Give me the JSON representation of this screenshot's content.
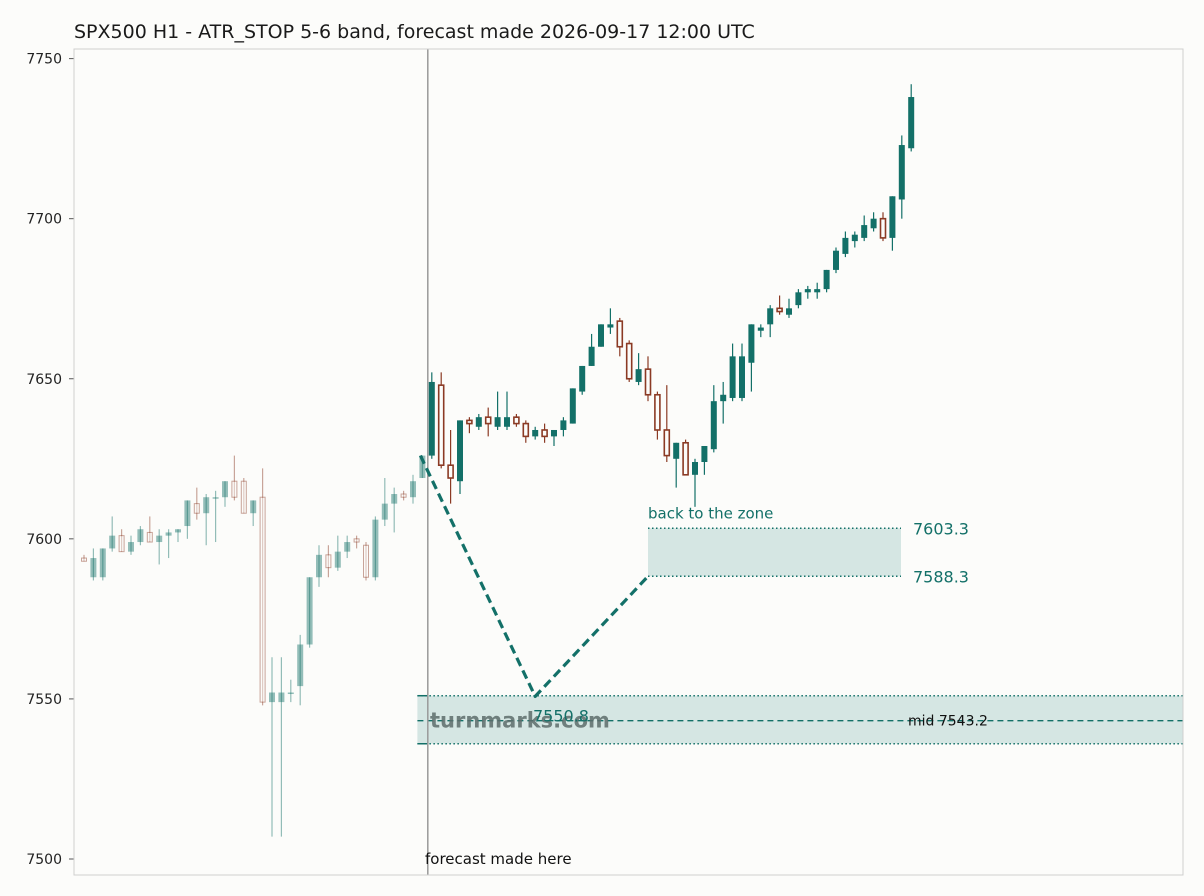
{
  "chart_data": {
    "type": "candlestick",
    "title": "SPX500 H1 - ATR_STOP 5-6 band, forecast made 2026-09-17 12:00 UTC",
    "xlabel": "",
    "ylabel": "",
    "ylim": [
      7495,
      7753
    ],
    "y_ticks": [
      7500,
      7550,
      7600,
      7650,
      7700,
      7750
    ],
    "grid": false,
    "colors": {
      "up": "#137068",
      "down": "#8b3a24",
      "band": "#d5e6e3",
      "accent": "#137068"
    },
    "history_candles": [
      [
        7594,
        7595,
        7593,
        7593
      ],
      [
        7588,
        7597,
        7587,
        7594
      ],
      [
        7588,
        7597,
        7587,
        7597
      ],
      [
        7597,
        7607,
        7596,
        7601
      ],
      [
        7601,
        7603,
        7596,
        7596
      ],
      [
        7596,
        7601,
        7595,
        7599
      ],
      [
        7599,
        7604,
        7598,
        7603
      ],
      [
        7602,
        7607,
        7599,
        7599
      ],
      [
        7599,
        7603,
        7592,
        7601
      ],
      [
        7601,
        7603,
        7594,
        7602
      ],
      [
        7602,
        7603,
        7599,
        7603
      ],
      [
        7604,
        7612,
        7600,
        7612
      ],
      [
        7611,
        7616,
        7606,
        7608
      ],
      [
        7608,
        7614,
        7598,
        7613
      ],
      [
        7613,
        7615,
        7599,
        7613
      ],
      [
        7613,
        7618,
        7610,
        7618
      ],
      [
        7618,
        7626,
        7612,
        7613
      ],
      [
        7618,
        7619,
        7608,
        7608
      ],
      [
        7608,
        7612,
        7604,
        7612
      ],
      [
        7613,
        7622,
        7548,
        7549
      ],
      [
        7549,
        7563,
        7507,
        7552
      ],
      [
        7549,
        7563,
        7507,
        7552
      ],
      [
        7552,
        7556,
        7549,
        7552
      ],
      [
        7554,
        7570,
        7548,
        7567
      ],
      [
        7567,
        7588,
        7566,
        7588
      ],
      [
        7588,
        7598,
        7585,
        7595
      ],
      [
        7595,
        7598,
        7588,
        7591
      ],
      [
        7591,
        7601,
        7590,
        7596
      ],
      [
        7596,
        7601,
        7594,
        7599
      ],
      [
        7600,
        7601,
        7597,
        7599
      ],
      [
        7598,
        7599,
        7587,
        7588
      ],
      [
        7588,
        7607,
        7587,
        7606
      ],
      [
        7606,
        7619,
        7604,
        7611
      ],
      [
        7611,
        7616,
        7602,
        7614
      ],
      [
        7614,
        7615,
        7612,
        7613
      ],
      [
        7613,
        7620,
        7611,
        7618
      ],
      [
        7619,
        7626,
        7619,
        7626
      ]
    ],
    "future_candles": [
      [
        7626,
        7652,
        7625,
        7649
      ],
      [
        7648,
        7652,
        7622,
        7623
      ],
      [
        7623,
        7634,
        7611,
        7619
      ],
      [
        7618,
        7637,
        7614,
        7637
      ],
      [
        7637,
        7638,
        7633,
        7636
      ],
      [
        7635,
        7639,
        7634,
        7638
      ],
      [
        7638,
        7641,
        7632,
        7636
      ],
      [
        7635,
        7646,
        7634,
        7638
      ],
      [
        7635,
        7646,
        7634,
        7638
      ],
      [
        7638,
        7639,
        7635,
        7636
      ],
      [
        7636,
        7637,
        7630,
        7632
      ],
      [
        7632,
        7635,
        7631,
        7634
      ],
      [
        7634,
        7636,
        7630,
        7632
      ],
      [
        7632,
        7634,
        7629,
        7634
      ],
      [
        7634,
        7638,
        7632,
        7637
      ],
      [
        7636,
        7647,
        7636,
        7647
      ],
      [
        7646,
        7654,
        7645,
        7654
      ],
      [
        7654,
        7664,
        7654,
        7660
      ],
      [
        7660,
        7667,
        7660,
        7667
      ],
      [
        7666,
        7672,
        7664,
        7667
      ],
      [
        7668,
        7669,
        7657,
        7660
      ],
      [
        7661,
        7662,
        7649,
        7650
      ],
      [
        7649,
        7658,
        7648,
        7653
      ],
      [
        7653,
        7657,
        7643,
        7645
      ],
      [
        7645,
        7646,
        7631,
        7634
      ],
      [
        7634,
        7648,
        7624,
        7626
      ],
      [
        7625,
        7630,
        7616,
        7630
      ],
      [
        7630,
        7631,
        7620,
        7620
      ],
      [
        7620,
        7625,
        7610,
        7624
      ],
      [
        7624,
        7629,
        7620,
        7629
      ],
      [
        7628,
        7648,
        7627,
        7643
      ],
      [
        7643,
        7649,
        7636,
        7645
      ],
      [
        7644,
        7661,
        7643,
        7657
      ],
      [
        7644,
        7661,
        7643,
        7657
      ],
      [
        7655,
        7667,
        7646,
        7667
      ],
      [
        7665,
        7667,
        7663,
        7666
      ],
      [
        7667,
        7673,
        7663,
        7672
      ],
      [
        7672,
        7676,
        7670,
        7671
      ],
      [
        7670,
        7675,
        7669,
        7672
      ],
      [
        7673,
        7678,
        7672,
        7677
      ],
      [
        7677,
        7679,
        7675,
        7678
      ],
      [
        7677,
        7680,
        7675,
        7678
      ],
      [
        7678,
        7684,
        7677,
        7684
      ],
      [
        7684,
        7691,
        7683,
        7690
      ],
      [
        7689,
        7696,
        7688,
        7694
      ],
      [
        7693,
        7696,
        7691,
        7695
      ],
      [
        7694,
        7701,
        7693,
        7698
      ],
      [
        7697,
        7702,
        7696,
        7700
      ],
      [
        7700,
        7702,
        7693,
        7694
      ],
      [
        7694,
        7707,
        7690,
        7707
      ],
      [
        7706,
        7726,
        7700,
        7723
      ],
      [
        7722,
        7742,
        7721,
        7738
      ]
    ],
    "forecast_path": [
      {
        "bar": 36,
        "value": 7626
      },
      {
        "bar": 48,
        "value": 7550.8
      },
      {
        "bar": 60,
        "value": 7588.3
      }
    ],
    "zones": [
      {
        "name": "target",
        "low": 7588.3,
        "high": 7603.3,
        "label": "back to the zone",
        "high_label": "7603.3",
        "low_label": "7588.3"
      },
      {
        "name": "stop",
        "low": 7536,
        "high": 7551,
        "mid": 7543.2,
        "mid_label": "mid 7543.2",
        "extreme_label": "7550.8"
      }
    ],
    "annotations": {
      "forecast_line_label": "forecast made here",
      "watermark": "turnmarks.com"
    }
  }
}
